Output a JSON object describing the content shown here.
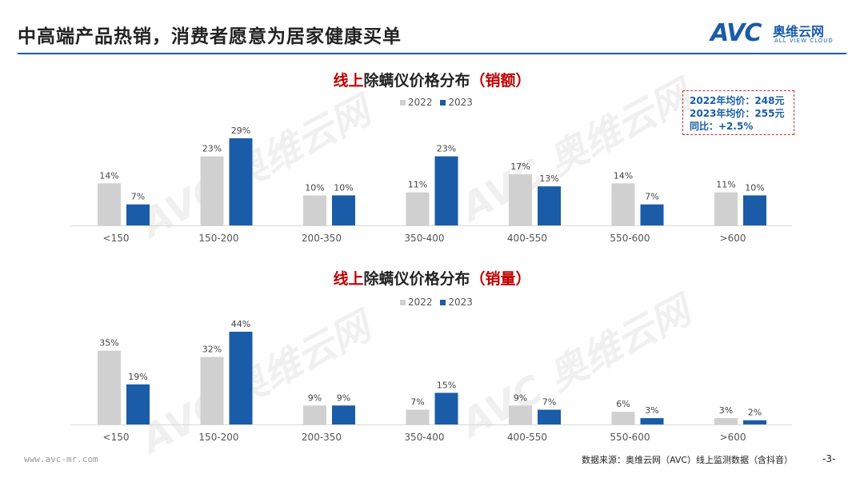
{
  "header": {
    "title": "中高端产品热销，消费者愿意为居家健康买单"
  },
  "logo": {
    "mark": "AVC",
    "name_cn": "奥维云网",
    "name_en": "ALL VIEW CLOUD"
  },
  "note": {
    "lines": [
      "2022年均价：248元",
      "2023年均价：255元",
      "同比：+2.5%"
    ]
  },
  "colors": {
    "y2022": "#d0d0d0",
    "y2023": "#1a5ca8",
    "accent_red": "#c00000"
  },
  "chart_data": [
    {
      "type": "bar",
      "title_prefix": "线上",
      "title_main": "除螨仪价格分布",
      "title_suffix": "（销额）",
      "categories": [
        "<150",
        "150-200",
        "200-350",
        "350-400",
        "400-550",
        "550-600",
        ">600"
      ],
      "series": [
        {
          "name": "2022",
          "values": [
            14,
            23,
            10,
            11,
            17,
            14,
            11
          ]
        },
        {
          "name": "2023",
          "values": [
            7,
            29,
            10,
            23,
            13,
            7,
            10
          ]
        }
      ],
      "ylim": [
        0,
        29
      ],
      "value_suffix": "%"
    },
    {
      "type": "bar",
      "title_prefix": "线上",
      "title_main": "除螨仪价格分布",
      "title_suffix": "（销量）",
      "categories": [
        "<150",
        "150-200",
        "200-350",
        "350-400",
        "400-550",
        "550-600",
        ">600"
      ],
      "series": [
        {
          "name": "2022",
          "values": [
            35,
            32,
            9,
            7,
            9,
            6,
            3
          ]
        },
        {
          "name": "2023",
          "values": [
            19,
            44,
            9,
            15,
            7,
            3,
            2
          ]
        }
      ],
      "ylim": [
        0,
        44
      ],
      "value_suffix": "%"
    }
  ],
  "footer": {
    "url": "www.avc-mr.com",
    "source": "数据来源：奥维云网（AVC）线上监测数据（含抖音）",
    "page": "-3-"
  }
}
